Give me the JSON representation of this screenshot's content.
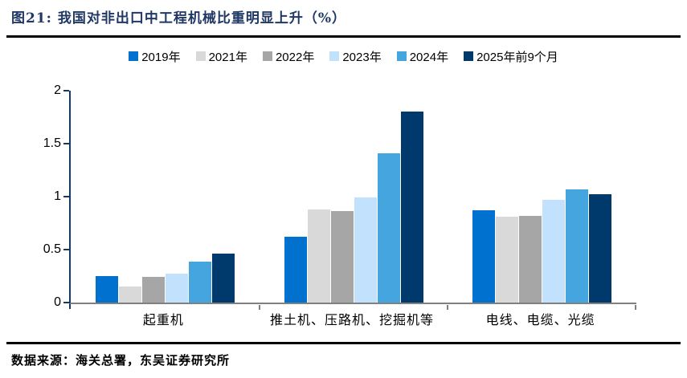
{
  "figure": {
    "title": "图21: 我国对非出口中工程机械比重明显上升（%）",
    "source": "数据来源：海关总署，东吴证券研究所"
  },
  "colors": {
    "title_navy": "#1F3864",
    "axis_navy": "#17375E",
    "baseline_gray": "#808080",
    "rule_black": "#000000"
  },
  "chart_data": {
    "type": "bar",
    "title": "图21: 我国对非出口中工程机械比重明显上升（%）",
    "categories": [
      "起重机",
      "推土机、压路机、挖掘机等",
      "电线、电缆、光缆"
    ],
    "series": [
      {
        "name": "2019年",
        "color": "#0071CE",
        "values": [
          0.25,
          0.62,
          0.87
        ]
      },
      {
        "name": "2021年",
        "color": "#D9D9D9",
        "values": [
          0.15,
          0.88,
          0.81
        ]
      },
      {
        "name": "2022年",
        "color": "#A6A6A6",
        "values": [
          0.24,
          0.86,
          0.82
        ]
      },
      {
        "name": "2023年",
        "color": "#C2E1FC",
        "values": [
          0.27,
          0.99,
          0.97
        ]
      },
      {
        "name": "2024年",
        "color": "#44A5DF",
        "values": [
          0.39,
          1.41,
          1.07
        ]
      },
      {
        "name": "2025年前9个月",
        "color": "#003A6C",
        "values": [
          0.46,
          1.8,
          1.02
        ]
      }
    ],
    "xlabel": "",
    "ylabel": "",
    "ylim": [
      0,
      2
    ],
    "yticks": [
      0,
      0.5,
      1,
      1.5,
      2
    ],
    "ytick_labels": [
      "0",
      "0.5",
      "1",
      "1.5",
      "2"
    ],
    "legend_position": "top",
    "grid": false
  }
}
